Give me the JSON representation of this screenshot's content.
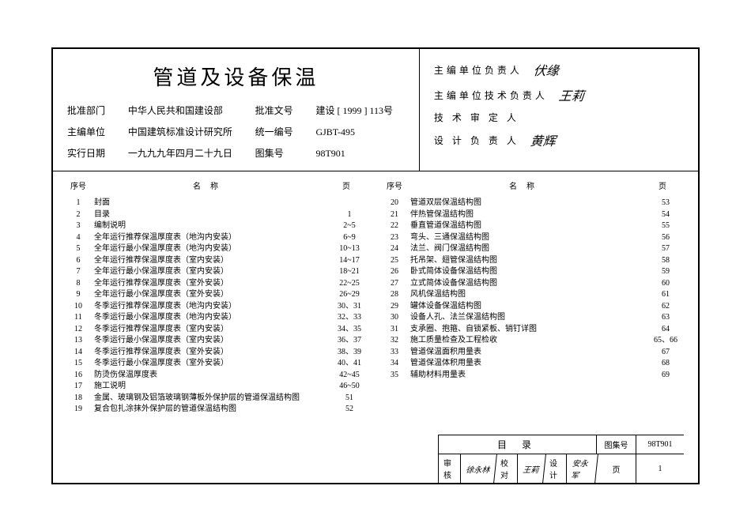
{
  "title": "管道及设备保温",
  "meta": {
    "approve_dept_label": "批准部门",
    "approve_dept": "中华人民共和国建设部",
    "approve_no_label": "批准文号",
    "approve_no": "建设 [ 1999 ] 113号",
    "editor_label": "主编单位",
    "editor": "中国建筑标准设计研究所",
    "unified_no_label": "统一编号",
    "unified_no": "GJBT-495",
    "exec_date_label": "实行日期",
    "exec_date": "一九九九年四月二十九日",
    "album_no_label": "图集号",
    "album_no": "98T901"
  },
  "signatures": [
    {
      "label": "主编单位负责人",
      "value": "伏缘"
    },
    {
      "label": "主编单位技术负责人",
      "value": "王莉"
    },
    {
      "label": "技 术 审 定 人",
      "value": ""
    },
    {
      "label": "设 计 负 责 人",
      "value": "黄辉"
    }
  ],
  "toc_headers": {
    "seq": "序号",
    "name": "名称",
    "page": "页"
  },
  "left": [
    {
      "seq": "1",
      "name": "封面",
      "page": ""
    },
    {
      "seq": "2",
      "name": "目录",
      "page": "1"
    },
    {
      "seq": "3",
      "name": "编制说明",
      "page": "2~5"
    },
    {
      "seq": "4",
      "name": "全年运行推荐保温厚度表（地沟内安装）",
      "page": "6~9"
    },
    {
      "seq": "5",
      "name": "全年运行最小保温厚度表（地沟内安装）",
      "page": "10~13"
    },
    {
      "seq": "6",
      "name": "全年运行推荐保温厚度表（室内安装）",
      "page": "14~17"
    },
    {
      "seq": "7",
      "name": "全年运行最小保温厚度表（室内安装）",
      "page": "18~21"
    },
    {
      "seq": "8",
      "name": "全年运行推荐保温厚度表（室外安装）",
      "page": "22~25"
    },
    {
      "seq": "9",
      "name": "全年运行最小保温厚度表（室外安装）",
      "page": "26~29"
    },
    {
      "seq": "10",
      "name": "冬季运行推荐保温厚度表（地沟内安装）",
      "page": "30、31"
    },
    {
      "seq": "11",
      "name": "冬季运行最小保温厚度表（地沟内安装）",
      "page": "32、33"
    },
    {
      "seq": "12",
      "name": "冬季运行推荐保温厚度表（室内安装）",
      "page": "34、35"
    },
    {
      "seq": "13",
      "name": "冬季运行最小保温厚度表（室内安装）",
      "page": "36、37"
    },
    {
      "seq": "14",
      "name": "冬季运行推荐保温厚度表（室外安装）",
      "page": "38、39"
    },
    {
      "seq": "15",
      "name": "冬季运行最小保温厚度表（室外安装）",
      "page": "40、41"
    },
    {
      "seq": "16",
      "name": "防烫伤保温厚度表",
      "page": "42~45"
    },
    {
      "seq": "17",
      "name": "施工说明",
      "page": "46~50"
    },
    {
      "seq": "18",
      "name": "金属、玻璃钢及铝箔玻璃钢薄板外保护层的管道保温结构图",
      "page": "51"
    },
    {
      "seq": "19",
      "name": "复合包扎涂抹外保护层的管道保温结构图",
      "page": "52"
    }
  ],
  "right": [
    {
      "seq": "20",
      "name": "管道双层保温结构图",
      "page": "53"
    },
    {
      "seq": "21",
      "name": "伴热管保温结构图",
      "page": "54"
    },
    {
      "seq": "22",
      "name": "垂直管道保温结构图",
      "page": "55"
    },
    {
      "seq": "23",
      "name": "弯头、三通保温结构图",
      "page": "56"
    },
    {
      "seq": "24",
      "name": "法兰、阀门保温结构图",
      "page": "57"
    },
    {
      "seq": "25",
      "name": "托吊架、翅管保温结构图",
      "page": "58"
    },
    {
      "seq": "26",
      "name": "卧式简体设备保温结构图",
      "page": "59"
    },
    {
      "seq": "27",
      "name": "立式简体设备保温结构图",
      "page": "60"
    },
    {
      "seq": "28",
      "name": "风机保温结构图",
      "page": "61"
    },
    {
      "seq": "29",
      "name": "罐体设备保温结构图",
      "page": "62"
    },
    {
      "seq": "30",
      "name": "设备人孔、法兰保温结构图",
      "page": "63"
    },
    {
      "seq": "31",
      "name": "支承圈、抱箍、自锁紧板、销钉详图",
      "page": "64"
    },
    {
      "seq": "32",
      "name": "施工质量检查及工程检收",
      "page": "65、66"
    },
    {
      "seq": "33",
      "name": "管道保温面积用量表",
      "page": "67"
    },
    {
      "seq": "34",
      "name": "管道保温体积用量表",
      "page": "68"
    },
    {
      "seq": "35",
      "name": "辅助材料用量表",
      "page": "69"
    }
  ],
  "footer": {
    "mulu": "目 录",
    "album_label": "图集号",
    "album_no": "98T901",
    "shenhe_label": "审核",
    "shenhe_val": "徐永林",
    "jiaodui_label": "校对",
    "jiaodui_val": "王莉",
    "sheji_label": "设计",
    "sheji_val": "安永军",
    "page_label": "页",
    "page_no": "1"
  }
}
